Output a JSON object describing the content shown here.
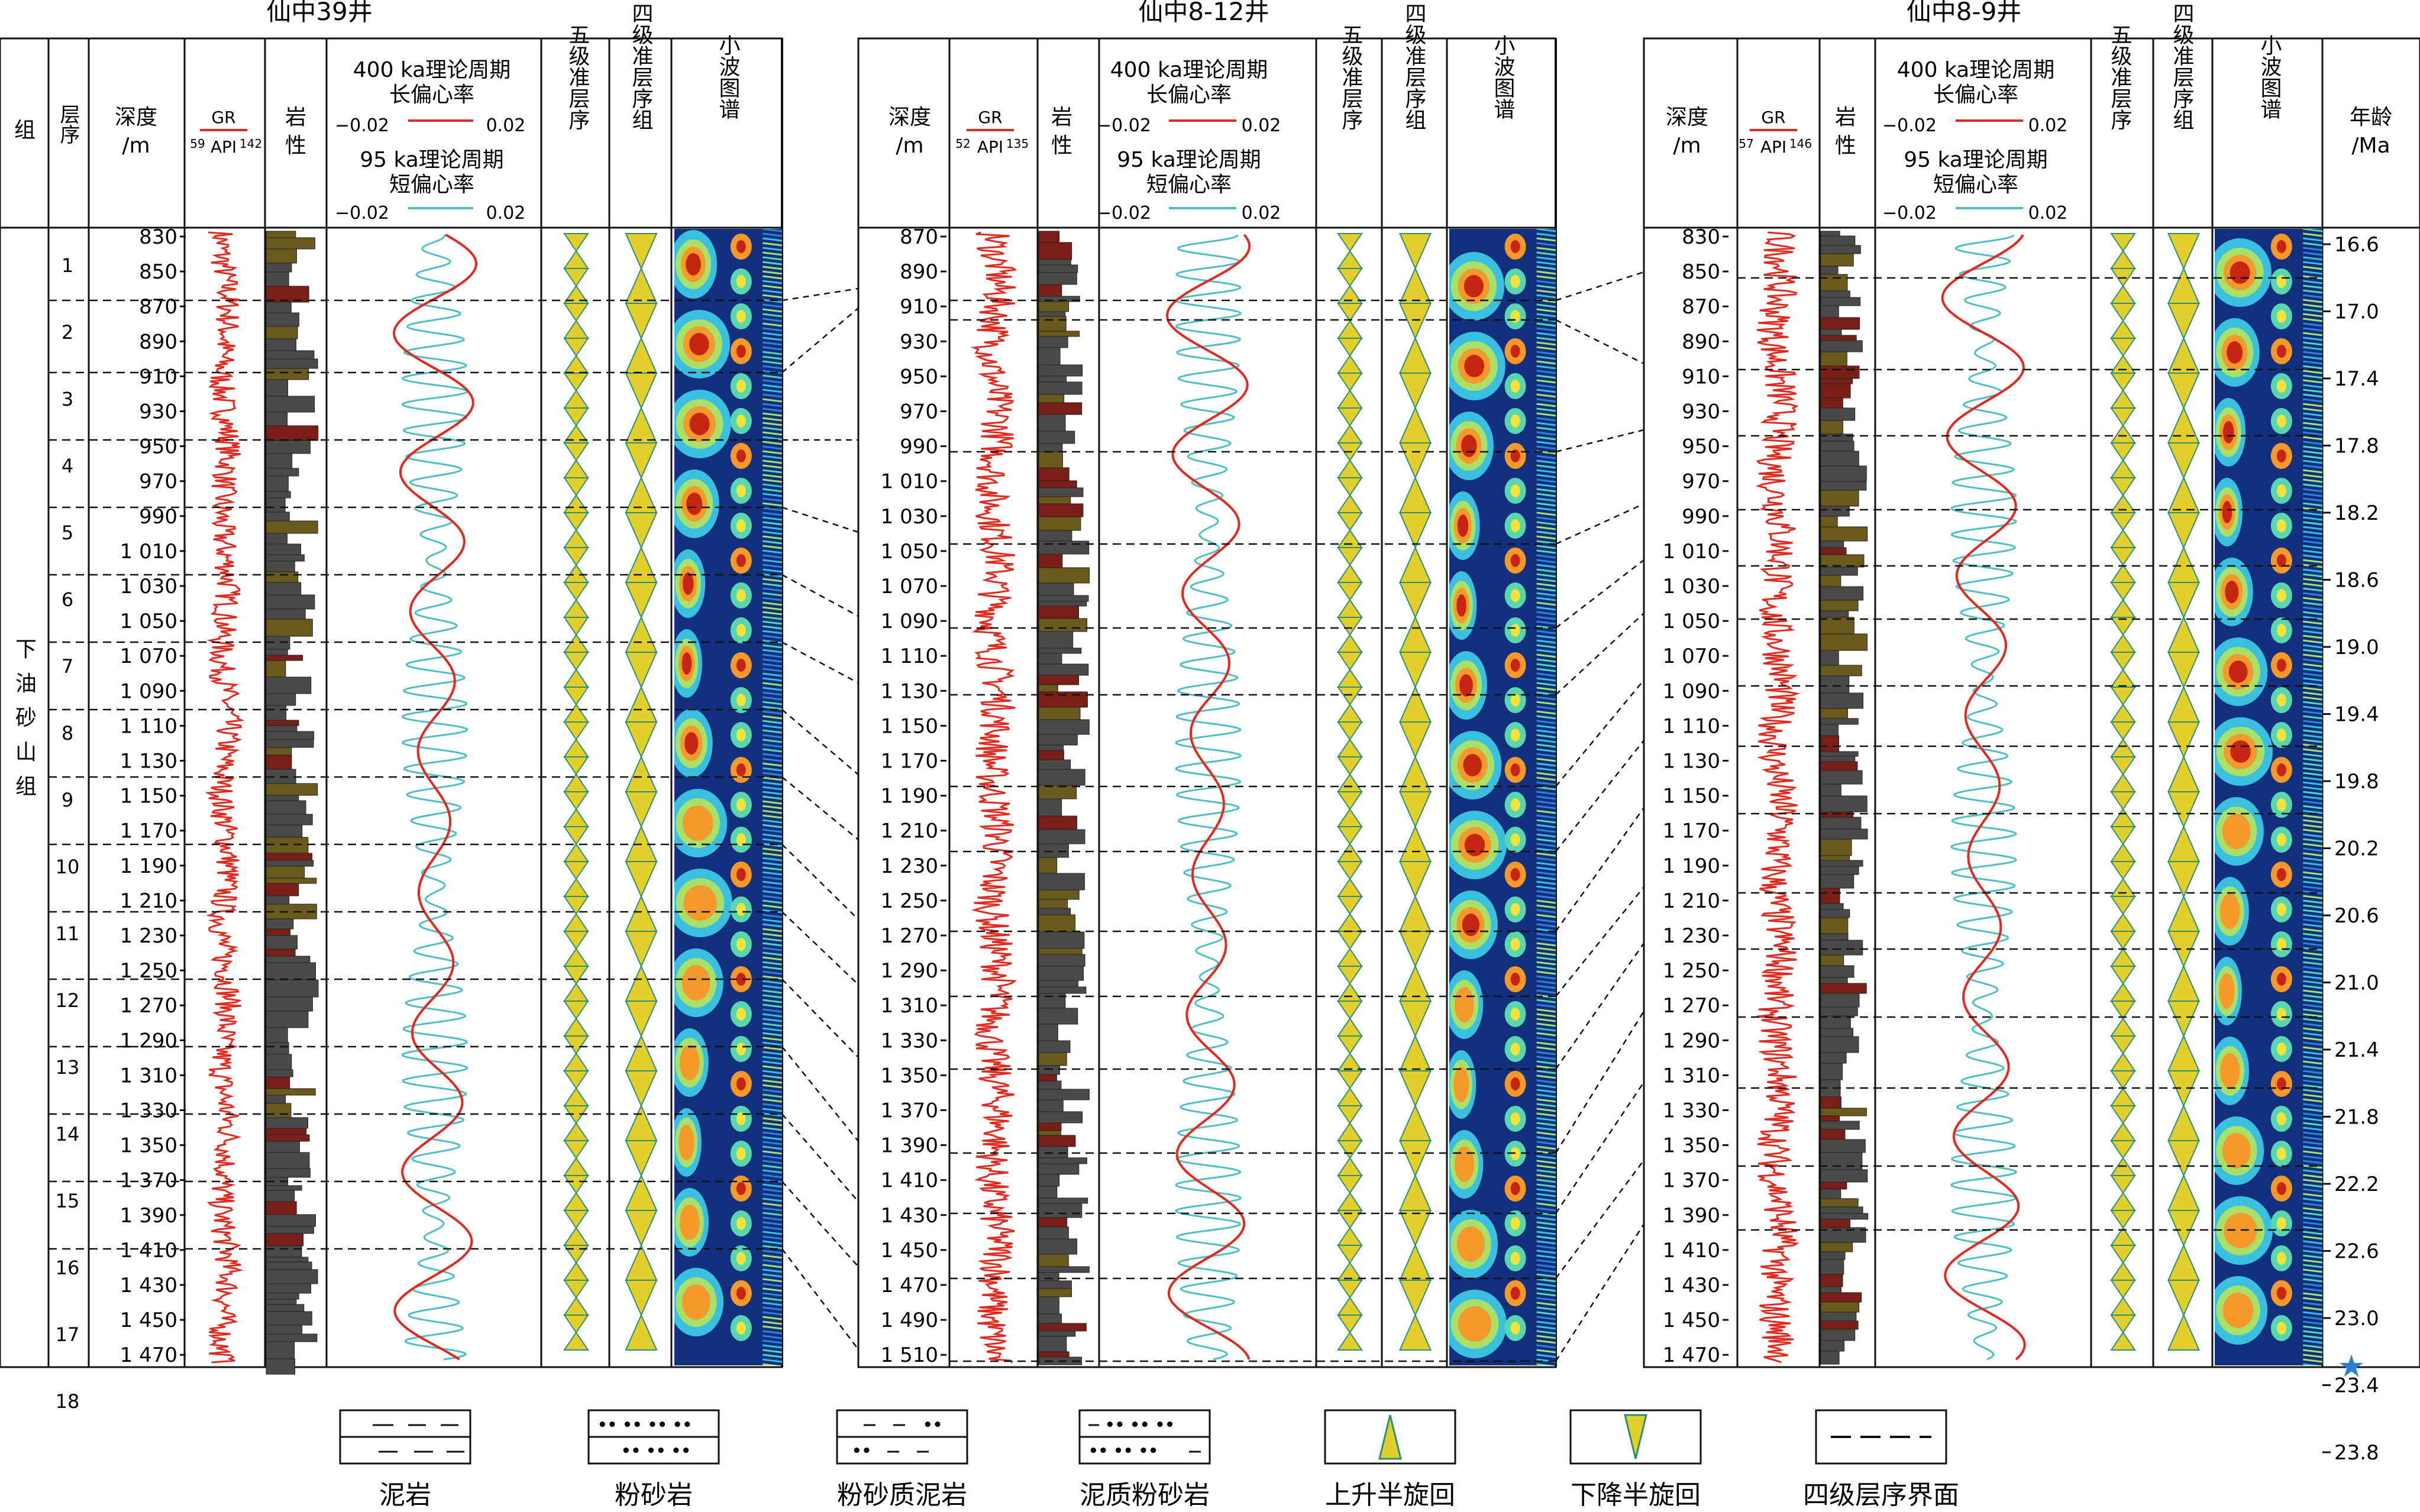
{
  "wells": [
    {
      "title": "仙中39井",
      "depth_ticks": [
        "830",
        "850",
        "870",
        "890",
        "910",
        "930",
        "950",
        "970",
        "990",
        "1 010",
        "1 030",
        "1 050",
        "1 070",
        "1 090",
        "1 110",
        "1 130",
        "1 150",
        "1 170",
        "1 190",
        "1 210",
        "1 230",
        "1 250",
        "1 270",
        "1 290",
        "1 310",
        "1 330",
        "1 350",
        "1 370",
        "1 390",
        "1 410",
        "1 430",
        "1 450",
        "1 470"
      ],
      "gr_min": "59",
      "gr_max": "142",
      "sequences": [
        "1",
        "2",
        "3",
        "4",
        "5",
        "6",
        "7",
        "8",
        "9",
        "10",
        "11",
        "12",
        "13",
        "14",
        "15",
        "16",
        "17",
        "18"
      ]
    },
    {
      "title": "仙中8-12井",
      "depth_ticks": [
        "870",
        "890",
        "910",
        "930",
        "950",
        "970",
        "990",
        "1 010",
        "1 030",
        "1 050",
        "1 070",
        "1 090",
        "1 110",
        "1 130",
        "1 150",
        "1 170",
        "1 190",
        "1 210",
        "1 230",
        "1 250",
        "1 270",
        "1 290",
        "1 310",
        "1 330",
        "1 350",
        "1 370",
        "1 390",
        "1 410",
        "1 430",
        "1 450",
        "1 470",
        "1 490",
        "1 510"
      ],
      "gr_min": "52",
      "gr_max": "135"
    },
    {
      "title": "仙中8-9井",
      "depth_ticks": [
        "830",
        "850",
        "870",
        "890",
        "910",
        "930",
        "950",
        "970",
        "990",
        "1 010",
        "1 030",
        "1 050",
        "1 070",
        "1 090",
        "1 110",
        "1 130",
        "1 150",
        "1 170",
        "1 190",
        "1 210",
        "1 230",
        "1 250",
        "1 270",
        "1 290",
        "1 310",
        "1 330",
        "1 350",
        "1 370",
        "1 390",
        "1 410",
        "1 430",
        "1 450",
        "1 470"
      ],
      "gr_min": "57",
      "gr_max": "146",
      "ages": [
        "16.6",
        "17.0",
        "17.4",
        "17.8",
        "18.2",
        "18.6",
        "19.0",
        "19.4",
        "19.8",
        "20.2",
        "20.6",
        "21.0",
        "21.4",
        "21.8",
        "22.2",
        "22.6",
        "23.0",
        "23.4",
        "23.8"
      ]
    }
  ],
  "headers": {
    "group": "组",
    "sequence": "层序",
    "depth_top": "深度",
    "depth_unit": "/m",
    "gr": "GR",
    "gr_unit": "API",
    "lithology_top": "岩",
    "lithology_bottom": "性",
    "ecc_long_1": "400 ka理论周期",
    "ecc_long_2": "长偏心率",
    "ecc_short_1": "95 ka理论周期",
    "ecc_short_2": "短偏心率",
    "ecc_min": "−0.02",
    "ecc_max": "0.02",
    "fifth_order": "五级准层序",
    "fourth_order": "四级准层序组",
    "wavelet": "小波图谱",
    "age_top": "年龄",
    "age_unit": "/Ma"
  },
  "formation_name": "下油砂山组",
  "legend": [
    {
      "label": "泥岩"
    },
    {
      "label": "粉砂岩"
    },
    {
      "label": "粉砂质泥岩"
    },
    {
      "label": "泥质粉砂岩"
    },
    {
      "label": "上升半旋回"
    },
    {
      "label": "下降半旋回"
    },
    {
      "label": "四级层序界面"
    }
  ],
  "colors": {
    "gr_curve": "#e02a1f",
    "long_eccentricity": "#e02a1f",
    "short_eccentricity": "#4fbfc4",
    "triangle_fill": "#e3cf2b",
    "triangle_edge": "#2a8f78",
    "wavelet_low": "#12307e",
    "wavelet_high": "#c62514",
    "mudstone_fill": "#4a4a4a",
    "redbed_fill": "#7a1e18",
    "siltstone_fill": "#6b5a1e"
  }
}
